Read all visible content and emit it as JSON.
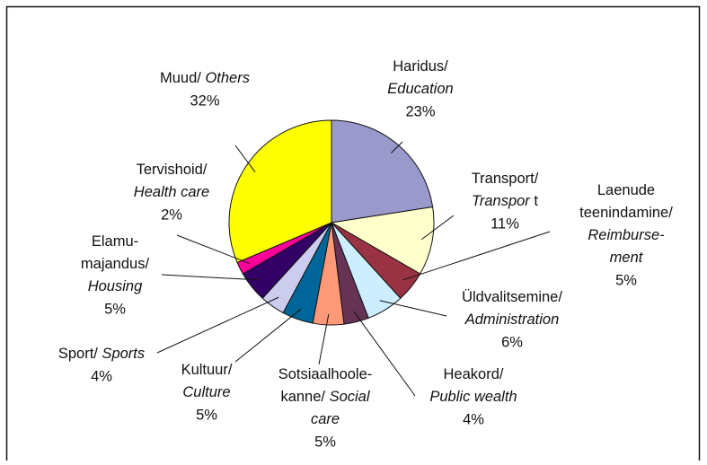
{
  "chart_data": {
    "type": "pie",
    "categories": [
      [
        [
          {
            "text": "Haridus/"
          }
        ],
        [
          {
            "text": "Education",
            "italic": true
          }
        ]
      ],
      [
        [
          {
            "text": "Transport/"
          }
        ],
        [
          {
            "text": "Transpor",
            "italic": true
          },
          {
            "text": " t"
          }
        ]
      ],
      [
        [
          {
            "text": "Laenude"
          }
        ],
        [
          {
            "text": "teenindamine/"
          }
        ],
        [
          {
            "text": "Reimburse-",
            "italic": true
          }
        ],
        [
          {
            "text": "ment",
            "italic": true
          }
        ]
      ],
      [
        [
          {
            "text": "Üldvalitsemine/"
          }
        ],
        [
          {
            "text": "Administration",
            "italic": true
          }
        ]
      ],
      [
        [
          {
            "text": "Heakord/"
          }
        ],
        [
          {
            "text": "Public wealth",
            "italic": true
          }
        ]
      ],
      [
        [
          {
            "text": "Sotsiaalhoole-"
          }
        ],
        [
          {
            "text": "kanne/ "
          },
          {
            "text": "Social",
            "italic": true
          }
        ],
        [
          {
            "text": "care",
            "italic": true
          }
        ]
      ],
      [
        [
          {
            "text": "Kultuur/"
          }
        ],
        [
          {
            "text": "Culture",
            "italic": true
          }
        ]
      ],
      [
        [
          {
            "text": "Sport/ "
          },
          {
            "text": "Sports",
            "italic": true
          }
        ]
      ],
      [
        [
          {
            "text": "Elamu-"
          }
        ],
        [
          {
            "text": "majandus/"
          }
        ],
        [
          {
            "text": "Housing",
            "italic": true
          }
        ]
      ],
      [
        [
          {
            "text": "Tervishoid/"
          }
        ],
        [
          {
            "text": "Health care",
            "italic": true
          }
        ]
      ],
      [
        [
          {
            "text": "Muud/ "
          },
          {
            "text": "Others",
            "italic": true
          }
        ]
      ]
    ],
    "values": [
      23,
      11,
      5,
      6,
      4,
      5,
      5,
      4,
      5,
      2,
      32
    ],
    "value_labels": [
      "23%",
      "11%",
      "5%",
      "6%",
      "4%",
      "5%",
      "5%",
      "4%",
      "5%",
      "2%",
      "32%"
    ],
    "colors": [
      "#9999cc",
      "#ffffcc",
      "#993344",
      "#cceeff",
      "#663355",
      "#ff9977",
      "#006699",
      "#ccccee",
      "#330066",
      "#ff0099",
      "#ffff00"
    ]
  }
}
